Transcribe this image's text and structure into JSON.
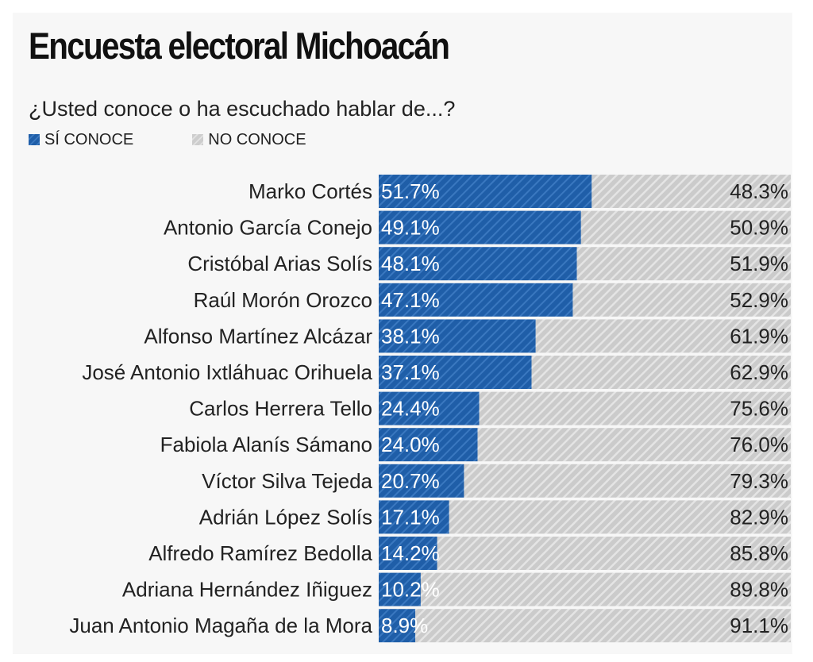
{
  "chart_data": {
    "type": "bar",
    "stacked": true,
    "orientation": "horizontal",
    "title": "Encuesta electoral Michoacán",
    "subtitle": "¿Usted conoce o ha escuchado hablar de...?",
    "legend": [
      {
        "name": "SÍ CONOCE",
        "color": "#1f5ea8"
      },
      {
        "name": "NO CONOCE",
        "color": "#cfcfcf"
      }
    ],
    "categories": [
      "Marko Cortés",
      "Antonio García Conejo",
      "Cristóbal Arias Solís",
      "Raúl Morón Orozco",
      "Alfonso Martínez Alcázar",
      "José Antonio Ixtláhuac Orihuela",
      "Carlos Herrera Tello",
      "Fabiola Alanís Sámano",
      "Víctor Silva Tejeda",
      "Adrián López Solís",
      "Alfredo Ramírez Bedolla",
      "Adriana Hernández Iñiguez",
      "Juan Antonio Magaña de la Mora"
    ],
    "series": [
      {
        "name": "SÍ CONOCE",
        "values": [
          51.7,
          49.1,
          48.1,
          47.1,
          38.1,
          37.1,
          24.4,
          24.0,
          20.7,
          17.1,
          14.2,
          10.2,
          8.9
        ],
        "labels": [
          "51.7%",
          "49.1%",
          "48.1%",
          "47.1%",
          "38.1%",
          "37.1%",
          "24.4%",
          "24.0%",
          "20.7%",
          "17.1%",
          "14.2%",
          "10.2%",
          "8.9%"
        ]
      },
      {
        "name": "NO CONOCE",
        "values": [
          48.3,
          50.9,
          51.9,
          52.9,
          61.9,
          62.9,
          75.6,
          76.0,
          79.3,
          82.9,
          85.8,
          89.8,
          91.1
        ],
        "labels": [
          "48.3%",
          "50.9%",
          "51.9%",
          "52.9%",
          "61.9%",
          "62.9%",
          "75.6%",
          "76.0%",
          "79.3%",
          "82.9%",
          "85.8%",
          "89.8%",
          "91.1%"
        ]
      }
    ],
    "xlim": [
      0,
      100
    ]
  }
}
